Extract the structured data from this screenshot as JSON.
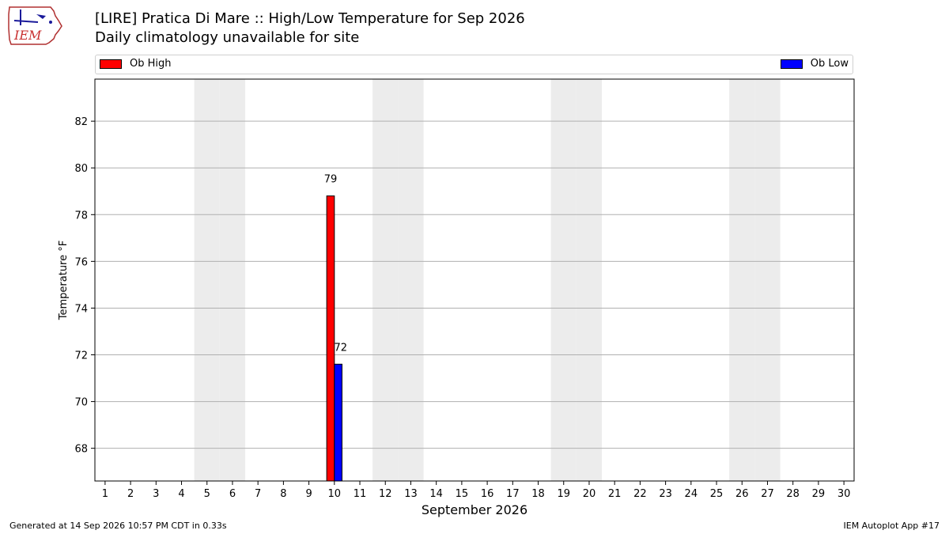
{
  "header": {
    "title": "[LIRE] Pratica Di Mare :: High/Low Temperature for Sep 2026",
    "subtitle": "Daily climatology unavailable for site",
    "logo_text": "IEM"
  },
  "legend": {
    "items": [
      {
        "label": "Ob High",
        "color": "#ff0000"
      },
      {
        "label": "Ob Low",
        "color": "#0000ff"
      }
    ]
  },
  "chart_data": {
    "type": "bar",
    "title": "[LIRE] Pratica Di Mare :: High/Low Temperature for Sep 2026",
    "subtitle": "Daily climatology unavailable for site",
    "xlabel": "September 2026",
    "ylabel": "Temperature °F",
    "categories": [
      "1",
      "2",
      "3",
      "4",
      "5",
      "6",
      "7",
      "8",
      "9",
      "10",
      "11",
      "12",
      "13",
      "14",
      "15",
      "16",
      "17",
      "18",
      "19",
      "20",
      "21",
      "22",
      "23",
      "24",
      "25",
      "26",
      "27",
      "28",
      "29",
      "30"
    ],
    "series": [
      {
        "name": "Ob High",
        "color": "#ff0000",
        "values": [
          null,
          null,
          null,
          null,
          null,
          null,
          null,
          null,
          null,
          78.8,
          null,
          null,
          null,
          null,
          null,
          null,
          null,
          null,
          null,
          null,
          null,
          null,
          null,
          null,
          null,
          null,
          null,
          null,
          null,
          null
        ],
        "labels": [
          null,
          null,
          null,
          null,
          null,
          null,
          null,
          null,
          null,
          "79",
          null,
          null,
          null,
          null,
          null,
          null,
          null,
          null,
          null,
          null,
          null,
          null,
          null,
          null,
          null,
          null,
          null,
          null,
          null,
          null
        ]
      },
      {
        "name": "Ob Low",
        "color": "#0000ff",
        "values": [
          null,
          null,
          null,
          null,
          null,
          null,
          null,
          null,
          null,
          71.6,
          null,
          null,
          null,
          null,
          null,
          null,
          null,
          null,
          null,
          null,
          null,
          null,
          null,
          null,
          null,
          null,
          null,
          null,
          null,
          null
        ],
        "labels": [
          null,
          null,
          null,
          null,
          null,
          null,
          null,
          null,
          null,
          "72",
          null,
          null,
          null,
          null,
          null,
          null,
          null,
          null,
          null,
          null,
          null,
          null,
          null,
          null,
          null,
          null,
          null,
          null,
          null,
          null
        ]
      }
    ],
    "ylim": [
      66.6,
      83.8
    ],
    "yticks": [
      68,
      70,
      72,
      74,
      76,
      78,
      80,
      82
    ],
    "weekend_days": [
      5,
      6,
      12,
      13,
      19,
      20,
      26,
      27
    ],
    "grid": true,
    "legend_placement": "top"
  },
  "footer": {
    "left": "Generated at 14 Sep 2026 10:57 PM CDT in 0.33s",
    "right": "IEM Autoplot App #17"
  }
}
